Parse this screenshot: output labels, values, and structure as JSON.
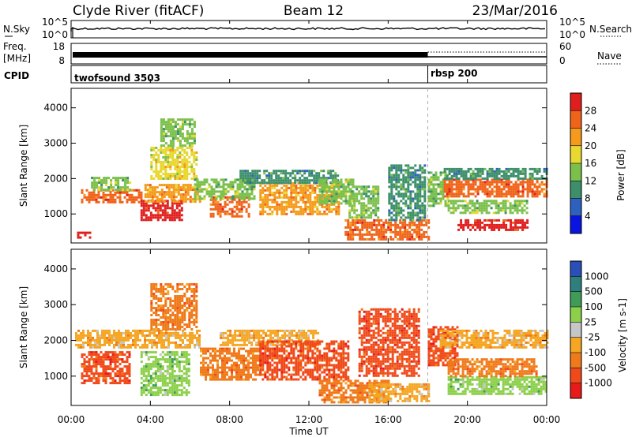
{
  "header": {
    "site": "Clyde River (fitACF)",
    "beam": "Beam 12",
    "date": "23/Mar/2016"
  },
  "sky_panel": {
    "left_label": "N.Sky",
    "right_label": "N.Search",
    "tick_top": "10^5",
    "tick_bottom": "10^0"
  },
  "freq_panel": {
    "left_label_1": "Freq.",
    "left_label_2": "[MHz]",
    "right_label": "Nave",
    "left_tick_top": "18",
    "left_tick_bottom": "8",
    "right_tick_top": "60",
    "right_tick_bottom": "0"
  },
  "cpid_panel": {
    "label": "CPID",
    "modes": [
      {
        "name": "twofsound 3503",
        "start_hour": 0
      },
      {
        "name": "rbsp 200",
        "start_hour": 18
      }
    ]
  },
  "chart_data": [
    {
      "type": "heatmap",
      "parameter": "Power",
      "ylabel": "Slant Range [km]",
      "colorbar_label": "Power [dB]",
      "colorbar_ticks": [
        "4",
        "8",
        "12",
        "16",
        "20",
        "24",
        "28"
      ],
      "colorbar_colors": [
        "#0a14e0",
        "#2e60c0",
        "#3c8f6a",
        "#7cc04c",
        "#e8d830",
        "#f59a1a",
        "#f0641a",
        "#e11e1e"
      ],
      "ylim": [
        180,
        4550
      ],
      "yticks": [
        1000,
        2000,
        3000,
        4000
      ],
      "regions": [
        {
          "t0": 0.3,
          "t1": 1.0,
          "r0": 300,
          "r1": 500,
          "level": 28
        },
        {
          "t0": 0.5,
          "t1": 3.5,
          "r0": 1300,
          "r1": 1700,
          "level": 24
        },
        {
          "t0": 1.0,
          "t1": 3.0,
          "r0": 1650,
          "r1": 2050,
          "level": 12
        },
        {
          "t0": 3.5,
          "t1": 5.6,
          "r0": 850,
          "r1": 1400,
          "level": 28
        },
        {
          "t0": 3.7,
          "t1": 6.5,
          "r0": 1350,
          "r1": 1850,
          "level": 20
        },
        {
          "t0": 4.0,
          "t1": 6.3,
          "r0": 2000,
          "r1": 2900,
          "level": 16
        },
        {
          "t0": 4.5,
          "t1": 6.2,
          "r0": 2900,
          "r1": 3700,
          "level": 12
        },
        {
          "t0": 7.0,
          "t1": 9.0,
          "r0": 900,
          "r1": 1500,
          "level": 24
        },
        {
          "t0": 6.2,
          "t1": 9.2,
          "r0": 1400,
          "r1": 2000,
          "level": 12
        },
        {
          "t0": 9.5,
          "t1": 13.5,
          "r0": 1000,
          "r1": 1900,
          "level": 20
        },
        {
          "t0": 8.5,
          "t1": 13.5,
          "r0": 1900,
          "r1": 2250,
          "level": 8
        },
        {
          "t0": 12.5,
          "t1": 14.2,
          "r0": 1300,
          "r1": 2000,
          "level": 12
        },
        {
          "t0": 13.8,
          "t1": 18.0,
          "r0": 300,
          "r1": 850,
          "level": 24
        },
        {
          "t0": 14.0,
          "t1": 15.5,
          "r0": 900,
          "r1": 1800,
          "level": 12
        },
        {
          "t0": 16.0,
          "t1": 17.8,
          "r0": 800,
          "r1": 2400,
          "level": 8
        },
        {
          "t0": 18.0,
          "t1": 19.0,
          "r0": 1200,
          "r1": 2200,
          "level": 12
        },
        {
          "t0": 18.8,
          "t1": 24.0,
          "r0": 1500,
          "r1": 2000,
          "level": 24
        },
        {
          "t0": 18.8,
          "t1": 24.0,
          "r0": 2000,
          "r1": 2300,
          "level": 8
        },
        {
          "t0": 19.0,
          "t1": 23.0,
          "r0": 1000,
          "r1": 1400,
          "level": 12
        },
        {
          "t0": 19.5,
          "t1": 23.0,
          "r0": 550,
          "r1": 850,
          "level": 28
        }
      ]
    },
    {
      "type": "heatmap",
      "parameter": "Velocity",
      "ylabel": "Slant Range [km]",
      "colorbar_label": "Velocity [m s-1]",
      "colorbar_ticks": [
        "1000",
        "500",
        "100",
        "25",
        "-25",
        "-100",
        "-500",
        "-1000"
      ],
      "colorbar_colors": [
        "#2a4fb8",
        "#2f7f7f",
        "#3f9b58",
        "#8cd04a",
        "#c6c6c6",
        "#f5a623",
        "#f07a1a",
        "#f04a1a",
        "#e81a1a"
      ],
      "ylim": [
        180,
        4550
      ],
      "yticks": [
        1000,
        2000,
        3000,
        4000
      ],
      "regions": [
        {
          "t0": 0.2,
          "t1": 6.5,
          "r0": 1800,
          "r1": 2300,
          "level": -25
        },
        {
          "t0": 0.5,
          "t1": 3.0,
          "r0": 800,
          "r1": 1700,
          "level": -500
        },
        {
          "t0": 3.5,
          "t1": 6.0,
          "r0": 500,
          "r1": 1700,
          "level": 100
        },
        {
          "t0": 4.0,
          "t1": 6.3,
          "r0": 2300,
          "r1": 3600,
          "level": -100
        },
        {
          "t0": 6.5,
          "t1": 9.5,
          "r0": 900,
          "r1": 1800,
          "level": -100
        },
        {
          "t0": 7.5,
          "t1": 12.5,
          "r0": 1900,
          "r1": 2300,
          "level": -25
        },
        {
          "t0": 9.5,
          "t1": 14.0,
          "r0": 900,
          "r1": 2000,
          "level": -500
        },
        {
          "t0": 12.5,
          "t1": 16.0,
          "r0": 300,
          "r1": 900,
          "level": -100
        },
        {
          "t0": 14.5,
          "t1": 17.5,
          "r0": 1000,
          "r1": 2900,
          "level": -500
        },
        {
          "t0": 15.0,
          "t1": 18.0,
          "r0": 300,
          "r1": 800,
          "level": -25
        },
        {
          "t0": 18.0,
          "t1": 19.5,
          "r0": 1300,
          "r1": 2400,
          "level": -500
        },
        {
          "t0": 18.6,
          "t1": 24.0,
          "r0": 1800,
          "r1": 2300,
          "level": -25
        },
        {
          "t0": 19.0,
          "t1": 24.0,
          "r0": 500,
          "r1": 1000,
          "level": 100
        },
        {
          "t0": 19.0,
          "t1": 23.5,
          "r0": 1000,
          "r1": 1500,
          "level": -100
        }
      ]
    }
  ],
  "xaxis": {
    "ticks": [
      "00:00",
      "04:00",
      "08:00",
      "12:00",
      "16:00",
      "20:00",
      "00:00"
    ],
    "label": "Time UT",
    "range_hours": [
      0,
      24
    ]
  }
}
